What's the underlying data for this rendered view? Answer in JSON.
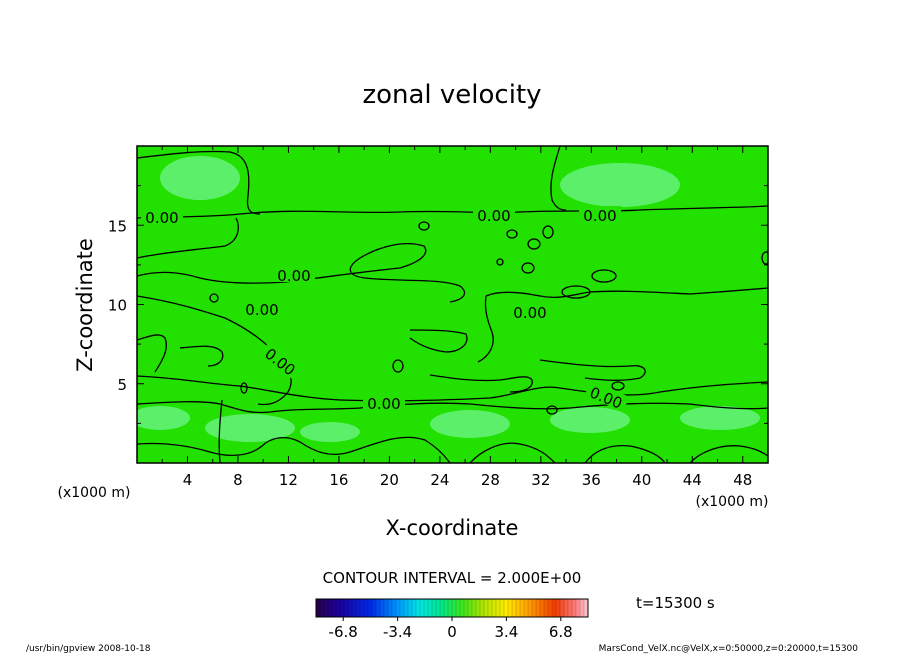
{
  "chart_data": {
    "type": "heatmap",
    "title": "zonal velocity",
    "xlabel": "X-coordinate",
    "ylabel": "Z-coordinate",
    "x_unit_label": "(x1000 m)",
    "y_unit_label": "(x1000 m)",
    "xlim": [
      0,
      50
    ],
    "ylim": [
      0,
      20
    ],
    "x_ticks": [
      "4",
      "8",
      "12",
      "16",
      "20",
      "24",
      "28",
      "32",
      "36",
      "40",
      "44",
      "48"
    ],
    "y_ticks": [
      "5",
      "10",
      "15"
    ],
    "contour_interval_text": "CONTOUR INTERVAL = 2.000E+00",
    "contour_labels": [
      "0.00",
      "0.00",
      "0.00",
      "0.00",
      "0.00",
      "0.00",
      "0.00",
      "0.00",
      "0.00"
    ],
    "colorbar": {
      "range": [
        -8.5,
        8.5
      ],
      "ticks": [
        "-6.8",
        "-3.4",
        "0",
        "3.4",
        "6.8"
      ]
    },
    "time_label": "t=15300 s",
    "fill_color": "#22e000",
    "highlight_color": "#5cf06a"
  },
  "footer": {
    "left": "/usr/bin/gpview   2008-10-18",
    "right": "MarsCond_VelX.nc@VelX,x=0:50000,z=0:20000,t=15300"
  }
}
